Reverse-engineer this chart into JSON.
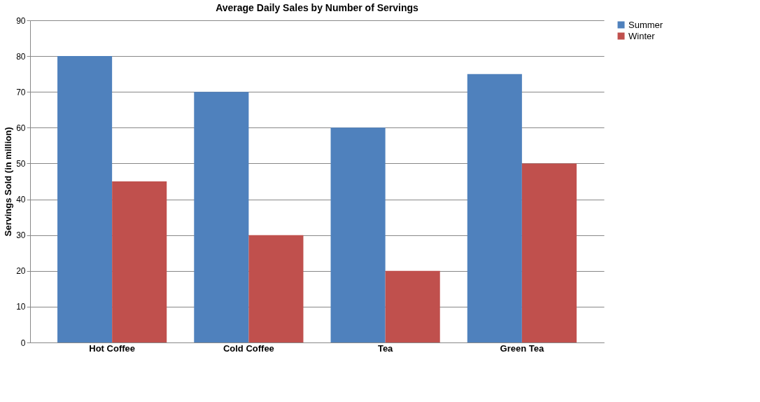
{
  "chart_data": {
    "type": "bar",
    "title": "Average Daily Sales by Number of Servings",
    "ylabel": "Servings Sold (in million)",
    "categories": [
      "Hot Coffee",
      "Cold Coffee",
      "Tea",
      "Green Tea"
    ],
    "series": [
      {
        "name": "Summer",
        "color": "#4f81bd",
        "values": [
          80,
          70,
          60,
          75
        ]
      },
      {
        "name": "Winter",
        "color": "#c0504d",
        "values": [
          45,
          30,
          20,
          50
        ]
      }
    ],
    "ylim": [
      0,
      90
    ],
    "yticks": [
      0,
      10,
      20,
      30,
      40,
      50,
      60,
      70,
      80,
      90
    ],
    "grid": "y",
    "legend": "right"
  }
}
